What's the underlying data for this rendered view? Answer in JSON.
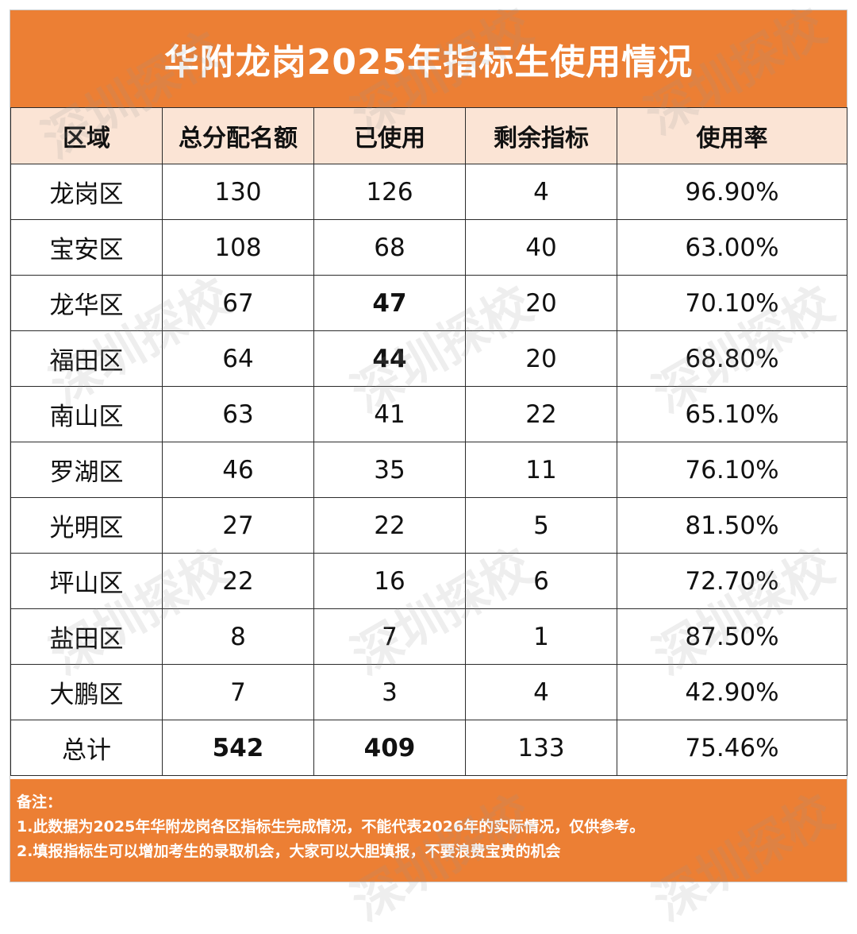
{
  "title": "华附龙岗2025年指标生使用情况",
  "watermark": "深圳探校",
  "table": {
    "headers": [
      "区域",
      "总分配名额",
      "已使用",
      "剩余指标",
      "使用率"
    ],
    "rows": [
      {
        "region": "龙岗区",
        "total": "130",
        "used": "126",
        "remaining": "4",
        "rate": "96.90%"
      },
      {
        "region": "宝安区",
        "total": "108",
        "used": "68",
        "remaining": "40",
        "rate": "63.00%"
      },
      {
        "region": "龙华区",
        "total": "67",
        "used": "47",
        "remaining": "20",
        "rate": "70.10%"
      },
      {
        "region": "福田区",
        "total": "64",
        "used": "44",
        "remaining": "20",
        "rate": "68.80%"
      },
      {
        "region": "南山区",
        "total": "63",
        "used": "41",
        "remaining": "22",
        "rate": "65.10%"
      },
      {
        "region": "罗湖区",
        "total": "46",
        "used": "35",
        "remaining": "11",
        "rate": "76.10%"
      },
      {
        "region": "光明区",
        "total": "27",
        "used": "22",
        "remaining": "5",
        "rate": "81.50%"
      },
      {
        "region": "坪山区",
        "total": "22",
        "used": "16",
        "remaining": "6",
        "rate": "72.70%"
      },
      {
        "region": "盐田区",
        "total": "8",
        "used": "7",
        "remaining": "1",
        "rate": "87.50%"
      },
      {
        "region": "大鹏区",
        "total": "7",
        "used": "3",
        "remaining": "4",
        "rate": "42.90%"
      },
      {
        "region": "总计",
        "total": "542",
        "used": "409",
        "remaining": "133",
        "rate": "75.46%"
      }
    ]
  },
  "notes": {
    "heading": "备注：",
    "line1": "1.此数据为2025年华附龙岗各区指标生完成情况，不能代表2026年的实际情况，仅供参考。",
    "line2": "2.填报指标生可以增加考生的录取机会，大家可以大胆填报，不要浪费宝贵的机会"
  }
}
